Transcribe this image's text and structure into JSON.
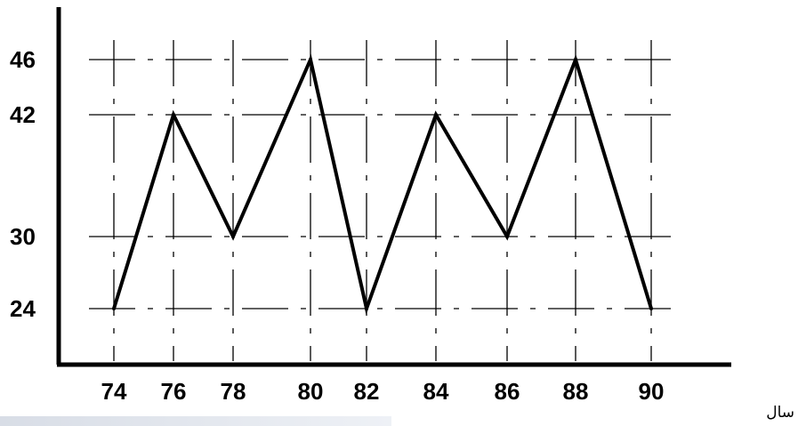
{
  "chart_data": {
    "type": "line",
    "x": [
      74,
      76,
      78,
      80,
      82,
      84,
      86,
      88,
      90
    ],
    "xticks": [
      "74",
      "76",
      "78",
      "80",
      "82",
      "84",
      "86",
      "88",
      "90"
    ],
    "yticks": [
      "46",
      "42",
      "30",
      "24"
    ],
    "series": [
      {
        "values": [
          24,
          42,
          30,
          46,
          24,
          42,
          30,
          46,
          24
        ]
      }
    ],
    "xlabel": "سال",
    "ylabel": "",
    "title": "",
    "grid": true,
    "color": "#000000"
  }
}
